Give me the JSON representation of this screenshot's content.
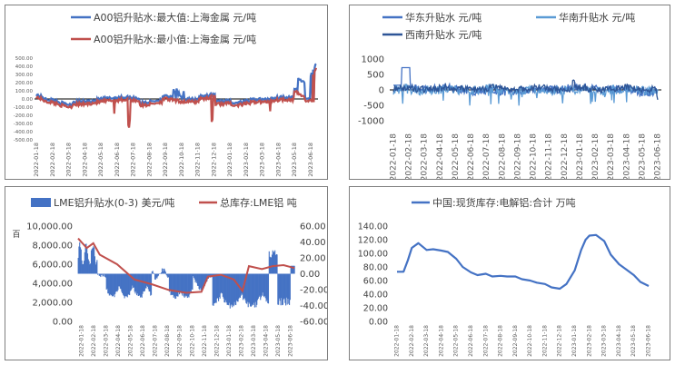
{
  "chart_data": [
    {
      "type": "line",
      "series": [
        {
          "name": "A00铝升贴水:最大值:上海金属 元/吨",
          "color": "#4472c4"
        },
        {
          "name": "A00铝升贴水:最小值:上海金属 元/吨",
          "color": "#c0504d"
        }
      ],
      "x_tick_labels": [
        "2022-01-18",
        "2022-02-18",
        "2022-03-18",
        "2022-04-18",
        "2022-05-18",
        "2022-06-18",
        "2022-07-18",
        "2022-08-18",
        "2022-09-18",
        "2022-10-18",
        "2022-11-18",
        "2022-12-18",
        "2023-01-18",
        "2023-02-18",
        "2023-03-18",
        "2023-04-18",
        "2023-05-18",
        "2023-06-18"
      ],
      "y_tick_labels": [
        "500.00",
        "400.00",
        "300.00",
        "200.00",
        "100.00",
        "0.00",
        "-100.00",
        "-200.00",
        "-300.00",
        "-400.00",
        "-500.00"
      ],
      "ylim": [
        -500,
        500
      ]
    },
    {
      "type": "line",
      "series": [
        {
          "name": "华东升贴水 元/吨",
          "color": "#4472c4"
        },
        {
          "name": "华南升贴水 元/吨",
          "color": "#5b9bd5"
        },
        {
          "name": "西南升贴水 元/吨",
          "color": "#2e5597"
        }
      ],
      "x_tick_labels": [
        "2022-01-18",
        "2022-02-18",
        "2022-03-18",
        "2022-04-18",
        "2022-05-18",
        "2022-06-18",
        "2022-07-18",
        "2022-08-18",
        "2022-09-18",
        "2022-10-18",
        "2022-11-18",
        "2022-12-18",
        "2023-01-18",
        "2023-02-18",
        "2023-03-18",
        "2023-04-18",
        "2023-05-18",
        "2023-06-18"
      ],
      "y_tick_labels": [
        "1000",
        "500",
        "0",
        "-500",
        "-1000"
      ],
      "ylim": [
        -1000,
        1000
      ]
    },
    {
      "type": "bar+line",
      "series": [
        {
          "name": "LME铝升贴水(0-3) 美元/吨",
          "color": "#4472c4",
          "axis": "right"
        },
        {
          "name": "总库存:LME铝 吨",
          "color": "#c0504d",
          "axis": "left"
        }
      ],
      "y_unit": "百",
      "x_tick_labels": [
        "2022-01-18",
        "2022-02-18",
        "2022-03-18",
        "2022-04-18",
        "2022-05-18",
        "2022-06-18",
        "2022-07-18",
        "2022-08-18",
        "2022-09-18",
        "2022-10-18",
        "2022-11-18",
        "2022-12-18",
        "2023-01-18",
        "2023-02-18",
        "2023-03-18",
        "2023-04-18",
        "2023-05-18",
        "2023-06-18"
      ],
      "y_left_tick_labels": [
        "10,000.00",
        "8,000.00",
        "6,000.00",
        "4,000.00",
        "2,000.00",
        "0.00"
      ],
      "y_right_tick_labels": [
        "60.00",
        "40.00",
        "20.00",
        "0.00",
        "-20.00",
        "-40.00",
        "-60.00"
      ],
      "ylim_left": [
        0,
        10000
      ],
      "ylim_right": [
        -60,
        60
      ]
    },
    {
      "type": "line",
      "title": "中国:现货库存:电解铝:合计 万吨",
      "series": [
        {
          "name": "中国:现货库存:电解铝:合计 万吨",
          "color": "#4472c4",
          "x": [
            "2022-01-18",
            "2022-02-01",
            "2022-02-10",
            "2022-02-18",
            "2022-03-01",
            "2022-03-18",
            "2022-04-01",
            "2022-04-18",
            "2022-05-01",
            "2022-05-18",
            "2022-06-01",
            "2022-06-18",
            "2022-07-01",
            "2022-07-18",
            "2022-08-01",
            "2022-08-18",
            "2022-09-01",
            "2022-09-18",
            "2022-10-01",
            "2022-10-18",
            "2022-11-01",
            "2022-11-18",
            "2022-12-01",
            "2022-12-18",
            "2023-01-01",
            "2023-01-18",
            "2023-02-01",
            "2023-02-10",
            "2023-02-18",
            "2023-03-01",
            "2023-03-18",
            "2023-04-01",
            "2023-04-18",
            "2023-05-01",
            "2023-05-18",
            "2023-06-01",
            "2023-06-18"
          ],
          "values": [
            73,
            73,
            90,
            108,
            115,
            105,
            106,
            104,
            102,
            92,
            80,
            72,
            68,
            70,
            66,
            67,
            66,
            66,
            62,
            60,
            57,
            55,
            50,
            48,
            55,
            75,
            105,
            120,
            126,
            127,
            118,
            98,
            84,
            77,
            68,
            58,
            52
          ]
        }
      ],
      "x_tick_labels": [
        "2022-01-18",
        "2022-02-18",
        "2022-03-18",
        "2022-04-18",
        "2022-05-18",
        "2022-06-18",
        "2022-07-18",
        "2022-08-18",
        "2022-09-18",
        "2022-10-18",
        "2022-11-18",
        "2022-12-18",
        "2023-01-18",
        "2023-02-18",
        "2023-03-18",
        "2023-04-18",
        "2023-05-18",
        "2023-06-18"
      ],
      "y_tick_labels": [
        "140.00",
        "120.00",
        "100.00",
        "80.00",
        "60.00",
        "40.00",
        "20.00",
        "0.00"
      ],
      "ylim": [
        0,
        140
      ]
    }
  ]
}
